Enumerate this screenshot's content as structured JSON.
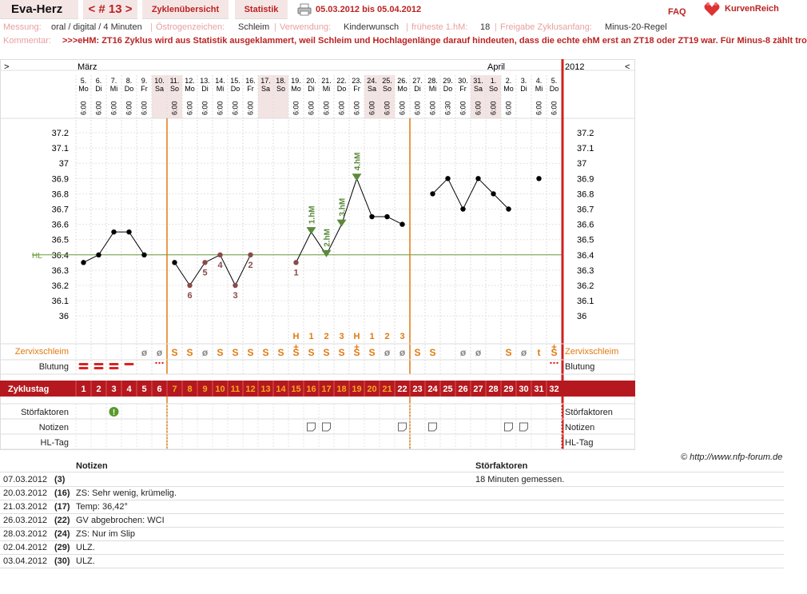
{
  "header": {
    "name": "Eva-Herz",
    "cycle_nav": "< # 13 >",
    "overview_tab": "Zyklenübersicht",
    "stats_tab": "Statistik",
    "date_range": "05.03.2012 bis 05.04.2012",
    "faq": "FAQ",
    "logo": "KurvenReich"
  },
  "meta": {
    "messung_label": "Messung:",
    "messung_value": "oral / digital / 4 Minuten",
    "oestrogen_label": "Östrogenzeichen:",
    "oestrogen_value": "Schleim",
    "verwendung_label": "Verwendung:",
    "verwendung_value": "Kinderwunsch",
    "frueheste_label": "früheste 1.hM:",
    "frueheste_value": "18",
    "freigabe_label": "Freigabe Zyklusanfang:",
    "freigabe_value": "Minus-20-Regel",
    "kommentar_label": "Kommentar:",
    "kommentar_value": ">>>eHM: ZT16 Zyklus wird aus Statistik ausgeklammert, weil Schleim und Hochlagenlänge darauf hindeuten, dass die echte ehM erst an ZT18 oder ZT19 war. Für Minus-8 zählt tro"
  },
  "chart_data": {
    "type": "line",
    "year": "2012",
    "nav_left": ">",
    "nav_right": "<",
    "month_labels": [
      {
        "label": "März",
        "day_index": 0
      },
      {
        "label": "April",
        "day_index": 27
      }
    ],
    "dates": [
      "5.",
      "6.",
      "7.",
      "8.",
      "9.",
      "10.",
      "11.",
      "12.",
      "13.",
      "14.",
      "15.",
      "16.",
      "17.",
      "18.",
      "19.",
      "20.",
      "21.",
      "22.",
      "23.",
      "24.",
      "25.",
      "26.",
      "27.",
      "28.",
      "29.",
      "30.",
      "31.",
      "1.",
      "2.",
      "3.",
      "4.",
      "5."
    ],
    "weekdays": [
      "Mo",
      "Di",
      "Mi",
      "Do",
      "Fr",
      "Sa",
      "So",
      "Mo",
      "Di",
      "Mi",
      "Do",
      "Fr",
      "Sa",
      "So",
      "Mo",
      "Di",
      "Mi",
      "Do",
      "Fr",
      "Sa",
      "So",
      "Mo",
      "Di",
      "Mi",
      "Do",
      "Fr",
      "Sa",
      "So",
      "Mo",
      "Di",
      "Mi",
      "Do"
    ],
    "times": [
      "6:00",
      "6:00",
      "6:00",
      "6:00",
      "6:00",
      "",
      "6:00",
      "6:00",
      "6:00",
      "6:00",
      "6:00",
      "6:00",
      "",
      "",
      "6:00",
      "6:00",
      "6:00",
      "6:00",
      "6:00",
      "6:00",
      "6:00",
      "6:00",
      "6:00",
      "6:00",
      "6:30",
      "6:00",
      "6:00",
      "6:00",
      "6:00",
      "",
      "6:00",
      "6:00"
    ],
    "cycle_days": [
      1,
      2,
      3,
      4,
      5,
      6,
      7,
      8,
      9,
      10,
      11,
      12,
      13,
      14,
      15,
      16,
      17,
      18,
      19,
      20,
      21,
      22,
      23,
      24,
      25,
      26,
      27,
      28,
      29,
      30,
      31,
      32
    ],
    "temperatures": [
      36.35,
      36.4,
      36.55,
      36.55,
      36.4,
      null,
      36.35,
      36.2,
      36.35,
      36.4,
      36.2,
      36.4,
      null,
      null,
      36.35,
      36.55,
      36.4,
      36.6,
      36.9,
      36.65,
      36.65,
      36.6,
      null,
      36.8,
      36.9,
      36.7,
      36.9,
      36.8,
      36.7,
      null,
      36.9,
      null
    ],
    "y_ticks": [
      "37.2",
      "37.1",
      "37",
      "36.9",
      "36.8",
      "36.7",
      "36.6",
      "36.5",
      "36.4",
      "36.3",
      "36.2",
      "36.1",
      "36"
    ],
    "ylim": [
      35.9,
      37.25
    ],
    "coverline": 36.4,
    "coverline_label": "HL",
    "low_labels": [
      {
        "day_index": 14,
        "label": "1"
      },
      {
        "day_index": 7,
        "label": "6"
      },
      {
        "day_index": 8,
        "label": "5"
      },
      {
        "day_index": 9,
        "label": "4"
      },
      {
        "day_index": 10,
        "label": "3"
      },
      {
        "day_index": 11,
        "label": "2"
      }
    ],
    "high_labels": [
      {
        "day_index": 15,
        "label": "1.hM"
      },
      {
        "day_index": 16,
        "label": "2.hM"
      },
      {
        "day_index": 17,
        "label": "3.hM"
      },
      {
        "day_index": 18,
        "label": "4.hM"
      }
    ],
    "mucus_count_labels": [
      "",
      "",
      "",
      "",
      "",
      "",
      "",
      "",
      "",
      "",
      "",
      "",
      "",
      "",
      "H",
      "1",
      "2",
      "3",
      "H",
      "1",
      "2",
      "3",
      "",
      "",
      "",
      "",
      "",
      "",
      "",
      "",
      "",
      ""
    ],
    "mucus_row_label": "Zervixschleim",
    "mucus": [
      "",
      "",
      "",
      "",
      "ø",
      "ø",
      "S",
      "S",
      "ø",
      "S",
      "S",
      "S",
      "S",
      "S",
      "S+",
      "S",
      "S",
      "S",
      "S+",
      "S",
      "ø",
      "ø",
      "S",
      "S",
      "",
      "ø",
      "ø",
      "",
      "S",
      "ø",
      "t",
      "S+"
    ],
    "bleeding_row_label": "Blutung",
    "bleeding": [
      "heavy",
      "heavy",
      "heavy",
      "medium",
      "",
      "spotting",
      "",
      "",
      "",
      "",
      "",
      "",
      "",
      "",
      "",
      "",
      "",
      "",
      "",
      "",
      "",
      "",
      "",
      "",
      "",
      "",
      "",
      "",
      "",
      "",
      "",
      "spotting"
    ],
    "cycle_row_label": "Zyklustag",
    "disturb_row_label": "Störfaktoren",
    "disturb": [
      2
    ],
    "notes_row_label": "Notizen",
    "notes_days": [
      15,
      16,
      21,
      23,
      28,
      29
    ],
    "hl_row_label": "HL-Tag",
    "phase_lines": [
      5.5,
      21.5
    ],
    "cycle_end_line": 31.5,
    "weekend_days": [
      5,
      6,
      12,
      13,
      19,
      20,
      26,
      27
    ]
  },
  "notes_table": {
    "col_notes": "Notizen",
    "col_disturb": "Störfaktoren",
    "rows": [
      {
        "date": "07.03.2012",
        "day": "(3)",
        "note": "",
        "disturb": "18 Minuten gemessen."
      },
      {
        "date": "20.03.2012",
        "day": "(16)",
        "note": "ZS: Sehr wenig, krümelig.",
        "disturb": ""
      },
      {
        "date": "21.03.2012",
        "day": "(17)",
        "note": "Temp: 36,42°",
        "disturb": ""
      },
      {
        "date": "26.03.2012",
        "day": "(22)",
        "note": "GV abgebrochen: WCI",
        "disturb": ""
      },
      {
        "date": "28.03.2012",
        "day": "(24)",
        "note": "ZS: Nur im Slip",
        "disturb": ""
      },
      {
        "date": "02.04.2012",
        "day": "(29)",
        "note": "ULZ.",
        "disturb": ""
      },
      {
        "date": "03.04.2012",
        "day": "(30)",
        "note": "ULZ.",
        "disturb": ""
      }
    ]
  },
  "credit": "© http://www.nfp-forum.de",
  "colors": {
    "accent": "#b22222",
    "mucus": "#e07a10",
    "hm": "#5a8a3a",
    "low": "#8b4a4a",
    "coverline": "#6a9a3a"
  }
}
